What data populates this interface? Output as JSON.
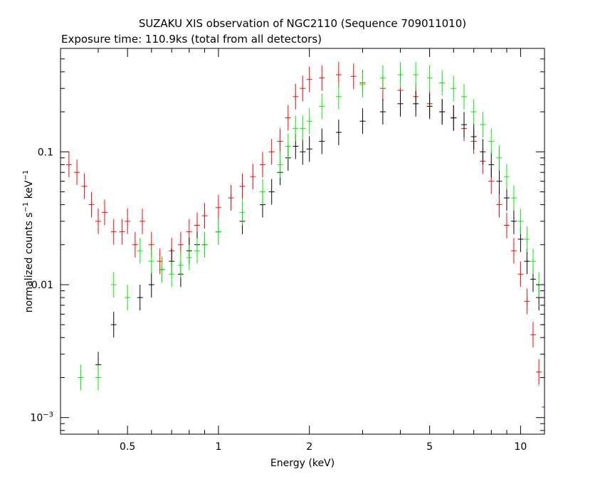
{
  "figure": {
    "title": "SUZAKU XIS observation of NGC2110 (Sequence 709011010)",
    "subtitle": "Exposure time: 110.9ks (total from all detectors)"
  },
  "chart_data": {
    "type": "scatter",
    "title": "SUZAKU XIS observation of NGC2110 (Sequence 709011010)",
    "subtitle": "Exposure time: 110.9ks (total from all detectors)",
    "xlabel": "Energy (keV)",
    "ylabel": "normalized counts s",
    "ylabel_sup1": "−1",
    "ylabel_mid": " keV",
    "ylabel_sup2": "−1",
    "xscale": "log",
    "yscale": "log",
    "xlim": [
      0.3,
      12.0
    ],
    "ylim": [
      0.00075,
      0.6
    ],
    "xticks": [
      {
        "value": 0.5,
        "label": "0.5"
      },
      {
        "value": 1,
        "label": "1"
      },
      {
        "value": 2,
        "label": "2"
      },
      {
        "value": 5,
        "label": "5"
      },
      {
        "value": 10,
        "label": "10"
      }
    ],
    "yticks": [
      {
        "value": 0.001,
        "label": "10",
        "sup": "−3"
      },
      {
        "value": 0.01,
        "label": "0.01"
      },
      {
        "value": 0.1,
        "label": "0.1"
      }
    ],
    "series": [
      {
        "color": "#ff0000",
        "points": [
          [
            0.32,
            0.08
          ],
          [
            0.34,
            0.07
          ],
          [
            0.36,
            0.055
          ],
          [
            0.38,
            0.04
          ],
          [
            0.4,
            0.03
          ],
          [
            0.42,
            0.035
          ],
          [
            0.45,
            0.025
          ],
          [
            0.48,
            0.025
          ],
          [
            0.5,
            0.03
          ],
          [
            0.53,
            0.02
          ],
          [
            0.56,
            0.03
          ],
          [
            0.6,
            0.02
          ],
          [
            0.64,
            0.015
          ],
          [
            0.7,
            0.018
          ],
          [
            0.75,
            0.02
          ],
          [
            0.8,
            0.025
          ],
          [
            0.85,
            0.028
          ],
          [
            0.9,
            0.033
          ],
          [
            1.0,
            0.038
          ],
          [
            1.1,
            0.045
          ],
          [
            1.2,
            0.055
          ],
          [
            1.3,
            0.065
          ],
          [
            1.4,
            0.08
          ],
          [
            1.5,
            0.1
          ],
          [
            1.6,
            0.12
          ],
          [
            1.7,
            0.18
          ],
          [
            1.8,
            0.26
          ],
          [
            1.9,
            0.3
          ],
          [
            2.0,
            0.35
          ],
          [
            2.2,
            0.36
          ],
          [
            2.5,
            0.38
          ],
          [
            2.8,
            0.37
          ],
          [
            3.0,
            0.33
          ],
          [
            3.5,
            0.3
          ],
          [
            4.0,
            0.29
          ],
          [
            4.5,
            0.26
          ],
          [
            5.0,
            0.23
          ],
          [
            5.5,
            0.2
          ],
          [
            6.0,
            0.18
          ],
          [
            6.5,
            0.15
          ],
          [
            7.0,
            0.12
          ],
          [
            7.5,
            0.085
          ],
          [
            8.0,
            0.06
          ],
          [
            8.5,
            0.04
          ],
          [
            9.0,
            0.028
          ],
          [
            9.5,
            0.018
          ],
          [
            10.0,
            0.012
          ],
          [
            10.5,
            0.0075
          ],
          [
            11.0,
            0.0042
          ],
          [
            11.5,
            0.0022
          ],
          [
            12.0,
            0.0012
          ]
        ]
      },
      {
        "color": "#000000",
        "points": [
          [
            0.4,
            0.0025
          ],
          [
            0.45,
            0.005
          ],
          [
            0.55,
            0.008
          ],
          [
            0.6,
            0.01
          ],
          [
            0.65,
            0.013
          ],
          [
            0.7,
            0.015
          ],
          [
            0.75,
            0.012
          ],
          [
            0.8,
            0.018
          ],
          [
            0.85,
            0.02
          ],
          [
            0.9,
            0.02
          ],
          [
            1.0,
            0.025
          ],
          [
            1.2,
            0.03
          ],
          [
            1.4,
            0.04
          ],
          [
            1.5,
            0.05
          ],
          [
            1.6,
            0.07
          ],
          [
            1.7,
            0.09
          ],
          [
            1.8,
            0.11
          ],
          [
            1.9,
            0.1
          ],
          [
            2.0,
            0.105
          ],
          [
            2.2,
            0.12
          ],
          [
            2.5,
            0.14
          ],
          [
            3.0,
            0.17
          ],
          [
            3.5,
            0.2
          ],
          [
            4.0,
            0.23
          ],
          [
            4.5,
            0.23
          ],
          [
            5.0,
            0.22
          ],
          [
            5.5,
            0.2
          ],
          [
            6.0,
            0.18
          ],
          [
            6.5,
            0.16
          ],
          [
            7.0,
            0.13
          ],
          [
            7.5,
            0.1
          ],
          [
            8.0,
            0.08
          ],
          [
            8.5,
            0.06
          ],
          [
            9.0,
            0.045
          ],
          [
            9.5,
            0.03
          ],
          [
            10.0,
            0.022
          ],
          [
            10.5,
            0.015
          ],
          [
            11.0,
            0.011
          ],
          [
            11.5,
            0.008
          ],
          [
            12.0,
            0.005
          ]
        ]
      },
      {
        "color": "#00ee00",
        "points": [
          [
            0.35,
            0.002
          ],
          [
            0.4,
            0.002
          ],
          [
            0.45,
            0.01
          ],
          [
            0.5,
            0.008
          ],
          [
            0.55,
            0.018
          ],
          [
            0.6,
            0.015
          ],
          [
            0.65,
            0.013
          ],
          [
            0.7,
            0.012
          ],
          [
            0.75,
            0.014
          ],
          [
            0.8,
            0.016
          ],
          [
            0.85,
            0.018
          ],
          [
            0.9,
            0.02
          ],
          [
            1.0,
            0.025
          ],
          [
            1.2,
            0.035
          ],
          [
            1.4,
            0.05
          ],
          [
            1.6,
            0.08
          ],
          [
            1.7,
            0.11
          ],
          [
            1.8,
            0.15
          ],
          [
            1.9,
            0.15
          ],
          [
            2.0,
            0.17
          ],
          [
            2.2,
            0.22
          ],
          [
            2.5,
            0.26
          ],
          [
            3.0,
            0.32
          ],
          [
            3.5,
            0.36
          ],
          [
            4.0,
            0.38
          ],
          [
            4.5,
            0.38
          ],
          [
            5.0,
            0.36
          ],
          [
            5.5,
            0.33
          ],
          [
            6.0,
            0.3
          ],
          [
            6.5,
            0.26
          ],
          [
            7.0,
            0.2
          ],
          [
            7.5,
            0.16
          ],
          [
            8.0,
            0.12
          ],
          [
            8.5,
            0.09
          ],
          [
            9.0,
            0.065
          ],
          [
            9.5,
            0.045
          ],
          [
            10.0,
            0.03
          ],
          [
            10.5,
            0.022
          ],
          [
            11.0,
            0.015
          ],
          [
            11.5,
            0.01
          ],
          [
            12.0,
            0.007
          ]
        ]
      }
    ]
  }
}
